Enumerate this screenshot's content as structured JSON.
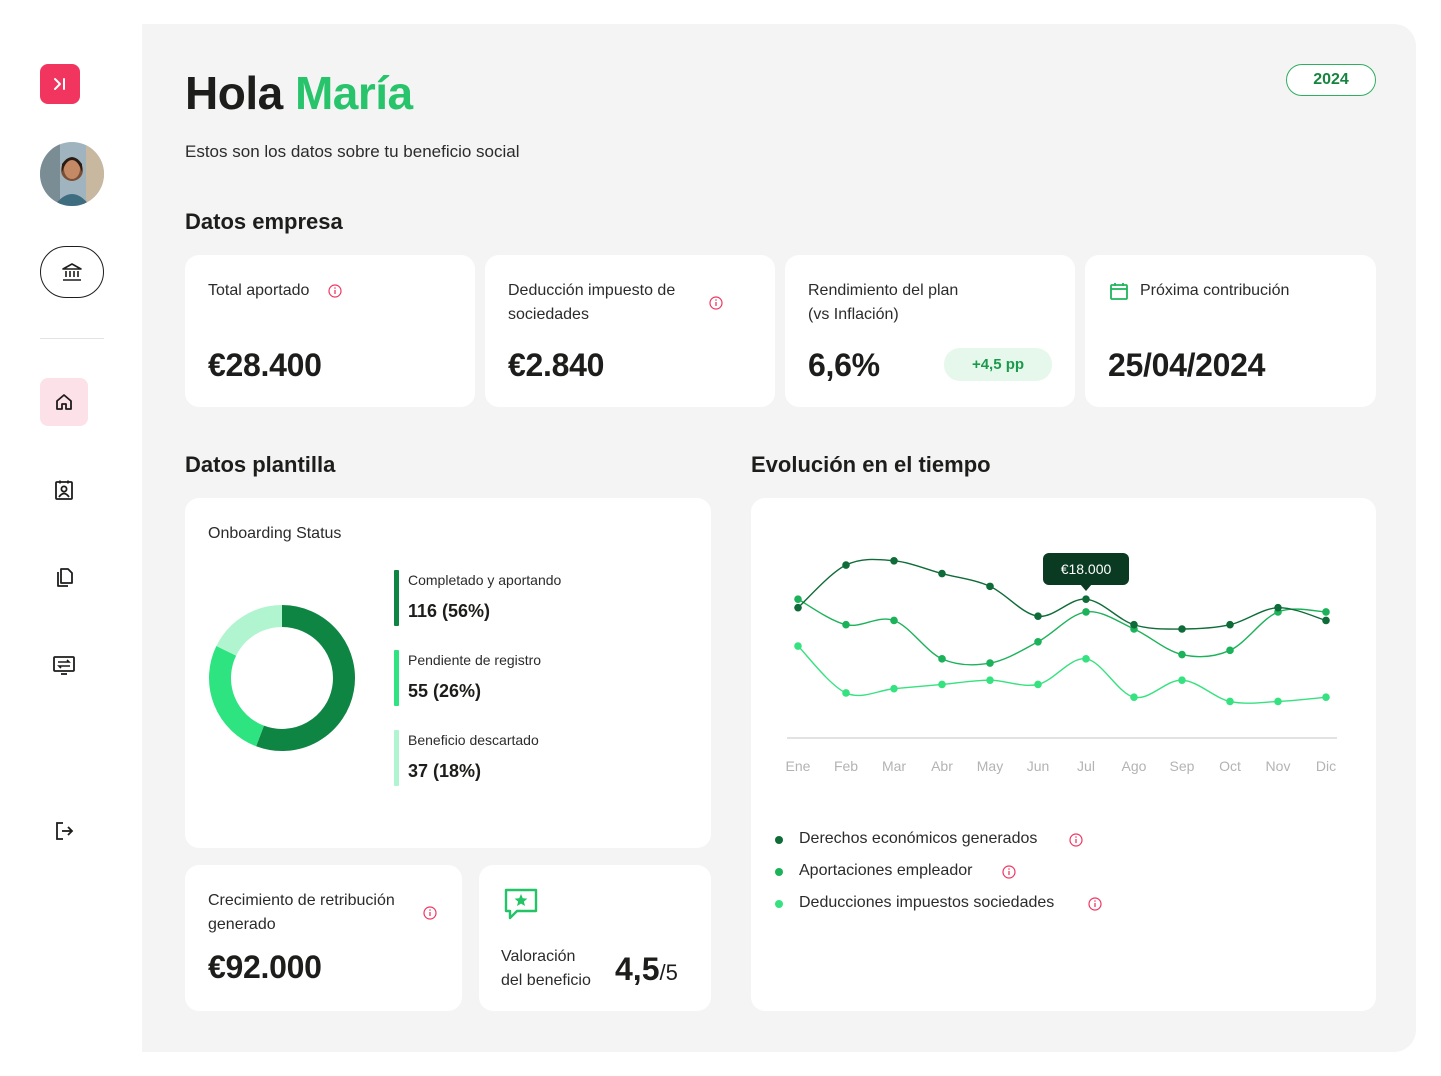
{
  "sidebar": {
    "icons": [
      "collapse-icon",
      "avatar",
      "bank-icon",
      "home-icon",
      "contact-book-icon",
      "documents-icon",
      "transfer-icon",
      "logout-icon"
    ]
  },
  "header": {
    "greeting": "Hola",
    "user_name": "María",
    "subtitle": "Estos son los datos sobre tu beneficio social",
    "year": "2024"
  },
  "company": {
    "section_title": "Datos empresa",
    "total": {
      "label": "Total aportado",
      "value": "€28.400"
    },
    "deduction": {
      "label_line1": "Deducción impuesto de",
      "label_line2": "sociedades",
      "value": "€2.840"
    },
    "performance": {
      "label_line1": "Rendimiento del plan",
      "label_line2": "(vs Inflación)",
      "value": "6,6%",
      "delta": "+4,5 pp"
    },
    "next": {
      "label": "Próxima contribución",
      "value": "25/04/2024"
    }
  },
  "staff": {
    "section_title": "Datos plantilla",
    "onboarding_title": "Onboarding Status",
    "statuses": [
      {
        "label": "Completado y aportando",
        "value": "116 (56%)",
        "count": 116,
        "color": "#0f8544"
      },
      {
        "label": "Pendiente de registro",
        "value": "55 (26%)",
        "count": 55,
        "color": "#2ee481"
      },
      {
        "label": "Beneficio descartado",
        "value": "37 (18%)",
        "count": 37,
        "color": "#b0f5cf"
      }
    ],
    "growth": {
      "label_line1": "Crecimiento de retribución",
      "label_line2": "generado",
      "value": "€92.000"
    },
    "rating": {
      "label_line1": "Valoración",
      "label_line2": "del beneficio",
      "value": "4,5",
      "max": "/5"
    }
  },
  "evolution": {
    "section_title": "Evolución en el tiempo",
    "tooltip": "€18.000",
    "legend": [
      {
        "label": "Derechos económicos generados",
        "color": "#0f6b38"
      },
      {
        "label": "Aportaciones empleador",
        "color": "#1cb25a"
      },
      {
        "label": "Deducciones impuestos sociedades",
        "color": "#36e27f"
      }
    ]
  },
  "chart_data": {
    "type": "line",
    "categories": [
      "Ene",
      "Feb",
      "Mar",
      "Abr",
      "May",
      "Jun",
      "Jul",
      "Ago",
      "Sep",
      "Oct",
      "Nov",
      "Dic"
    ],
    "series": [
      {
        "name": "Derechos económicos generados",
        "color": "#0f6b38",
        "values": [
          16,
          26,
          27,
          24,
          21,
          14,
          18,
          12,
          11,
          12,
          16,
          13
        ]
      },
      {
        "name": "Aportaciones empleador",
        "color": "#1cb25a",
        "values": [
          18,
          12,
          13,
          4,
          3,
          8,
          15,
          11,
          5,
          6,
          15,
          15
        ]
      },
      {
        "name": "Deducciones impuestos sociedades",
        "color": "#36e27f",
        "values": [
          7,
          -4,
          -3,
          -2,
          -1,
          -2,
          4,
          -5,
          -1,
          -6,
          -6,
          -5
        ]
      }
    ],
    "highlight": {
      "series": 0,
      "index": 6,
      "label": "€18.000"
    }
  },
  "colors": {
    "accent_pink": "#f2355f",
    "brand_green": "#27c46b",
    "dark_green": "#0f8544"
  }
}
